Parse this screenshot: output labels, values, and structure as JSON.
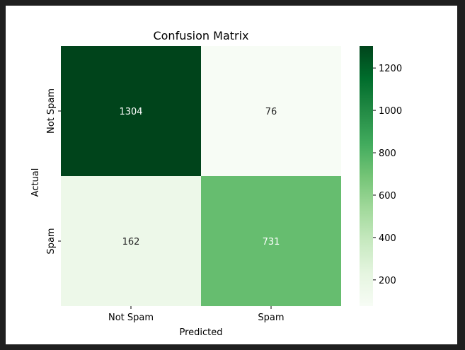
{
  "chart_data": {
    "type": "heatmap",
    "title": "Confusion Matrix",
    "xlabel": "Predicted",
    "ylabel": "Actual",
    "x_categories": [
      "Not Spam",
      "Spam"
    ],
    "y_categories": [
      "Not Spam",
      "Spam"
    ],
    "values": [
      [
        1304,
        76
      ],
      [
        162,
        731
      ]
    ],
    "colormap": "Greens",
    "color_range": [
      76,
      1304
    ],
    "colorbar_ticks": [
      200,
      400,
      600,
      800,
      1000,
      1200
    ],
    "grid": false,
    "colorbar_position": "right"
  }
}
